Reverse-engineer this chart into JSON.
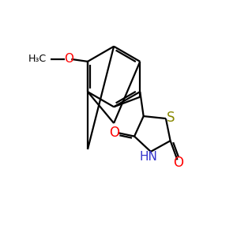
{
  "background_color": "#FFFFFF",
  "bond_color": "#000000",
  "oxygen_color": "#FF0000",
  "nitrogen_color": "#3333CC",
  "sulfur_color": "#888800",
  "line_width": 1.6,
  "figsize": [
    3.0,
    3.0
  ],
  "dpi": 100,
  "xlim": [
    0,
    10
  ],
  "ylim": [
    0,
    10
  ]
}
